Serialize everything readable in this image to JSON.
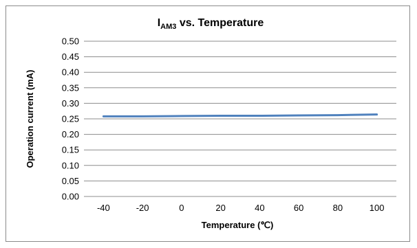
{
  "chart_data": {
    "type": "line",
    "title_main": "I",
    "title_sub": "AM3",
    "title_rest": " vs. Temperature",
    "xlabel": "Temperature (℃)",
    "ylabel": "Operation current (mA)",
    "x_ticks": [
      "-40",
      "-20",
      "0",
      "20",
      "40",
      "60",
      "80",
      "100"
    ],
    "y_ticks": [
      "0.00",
      "0.05",
      "0.10",
      "0.15",
      "0.20",
      "0.25",
      "0.30",
      "0.35",
      "0.40",
      "0.45",
      "0.50"
    ],
    "xlim": [
      -40,
      100
    ],
    "ylim": [
      0,
      0.5
    ],
    "grid": true,
    "line_color": "#4f81bd",
    "series": [
      {
        "x": [
          -40,
          -20,
          0,
          20,
          40,
          60,
          80,
          100
        ],
        "values": [
          0.258,
          0.258,
          0.259,
          0.26,
          0.26,
          0.261,
          0.262,
          0.264
        ]
      }
    ]
  }
}
